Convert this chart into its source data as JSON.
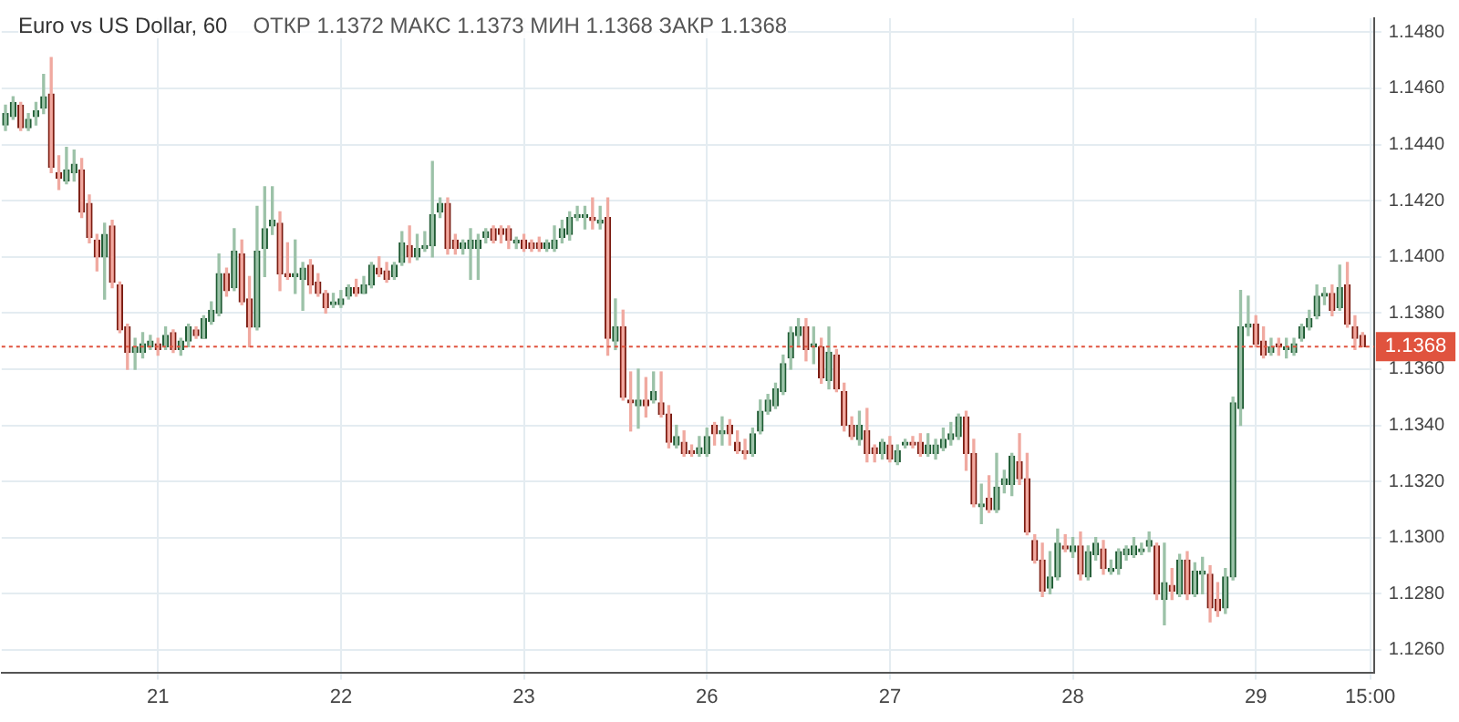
{
  "chart_data": {
    "type": "candlestick",
    "title": "Euro vs US Dollar, 60",
    "subtitle": "ОТКР 1.1372 МАКС 1.1373 МИН 1.1368 ЗАКР 1.1368",
    "categories": [
      null,
      null,
      null,
      null,
      null,
      null,
      null,
      null,
      null,
      null,
      null,
      null,
      null,
      null,
      null,
      null,
      null,
      null,
      null,
      null,
      "21",
      null,
      null,
      null,
      null,
      null,
      null,
      null,
      null,
      null,
      null,
      null,
      null,
      null,
      null,
      null,
      null,
      null,
      null,
      null,
      null,
      null,
      null,
      null,
      "22",
      null,
      null,
      null,
      null,
      null,
      null,
      null,
      null,
      null,
      null,
      null,
      null,
      null,
      null,
      null,
      null,
      null,
      null,
      null,
      null,
      null,
      null,
      null,
      "23",
      null,
      null,
      null,
      null,
      null,
      null,
      null,
      null,
      null,
      null,
      null,
      null,
      null,
      null,
      null,
      null,
      null,
      null,
      null,
      null,
      null,
      null,
      null,
      "26",
      null,
      null,
      null,
      null,
      null,
      null,
      null,
      null,
      null,
      null,
      null,
      null,
      null,
      null,
      null,
      null,
      null,
      null,
      null,
      null,
      null,
      null,
      null,
      "27",
      null,
      null,
      null,
      null,
      null,
      null,
      null,
      null,
      null,
      null,
      null,
      null,
      null,
      null,
      null,
      null,
      null,
      null,
      null,
      null,
      null,
      null,
      null,
      "28",
      null,
      null,
      null,
      null,
      null,
      null,
      null,
      null,
      null,
      null,
      null,
      null,
      null,
      null,
      null,
      null,
      null,
      null,
      null,
      null,
      null,
      null,
      null,
      "29",
      null,
      null,
      null,
      null,
      null,
      null,
      null,
      null,
      null,
      null,
      null,
      null,
      null,
      null,
      "15:00"
    ],
    "ohlc": [
      [
        1.1447,
        1.1454,
        1.1445,
        1.1451
      ],
      [
        1.145,
        1.1457,
        1.1449,
        1.1455
      ],
      [
        1.1454,
        1.1455,
        1.1445,
        1.1446
      ],
      [
        1.1446,
        1.1451,
        1.1445,
        1.1449
      ],
      [
        1.145,
        1.1455,
        1.1447,
        1.1452
      ],
      [
        1.1453,
        1.1465,
        1.1451,
        1.1457
      ],
      [
        1.1458,
        1.1471,
        1.143,
        1.1432
      ],
      [
        1.143,
        1.1436,
        1.1424,
        1.1428
      ],
      [
        1.1427,
        1.1439,
        1.1426,
        1.1431
      ],
      [
        1.143,
        1.1438,
        1.1427,
        1.1433
      ],
      [
        1.1431,
        1.1435,
        1.1414,
        1.1416
      ],
      [
        1.1419,
        1.1422,
        1.1405,
        1.1407
      ],
      [
        1.1406,
        1.1408,
        1.1395,
        1.14
      ],
      [
        1.14,
        1.1412,
        1.1385,
        1.1408
      ],
      [
        1.1411,
        1.1413,
        1.1389,
        1.1391
      ],
      [
        1.139,
        1.1391,
        1.1373,
        1.1374
      ],
      [
        1.1375,
        1.1376,
        1.136,
        1.1366
      ],
      [
        1.1366,
        1.1371,
        1.136,
        1.1368
      ],
      [
        1.1366,
        1.1373,
        1.1364,
        1.1369
      ],
      [
        1.1368,
        1.1372,
        1.1367,
        1.137
      ],
      [
        1.1369,
        1.1371,
        1.1365,
        1.1367
      ],
      [
        1.1368,
        1.1375,
        1.1367,
        1.1372
      ],
      [
        1.1373,
        1.1374,
        1.1366,
        1.1367
      ],
      [
        1.1367,
        1.1371,
        1.1365,
        1.137
      ],
      [
        1.137,
        1.1376,
        1.1368,
        1.1375
      ],
      [
        1.1374,
        1.1375,
        1.1371,
        1.1372
      ],
      [
        1.1371,
        1.1379,
        1.1371,
        1.1378
      ],
      [
        1.1377,
        1.1384,
        1.1376,
        1.1381
      ],
      [
        1.138,
        1.1401,
        1.1379,
        1.1394
      ],
      [
        1.1394,
        1.1396,
        1.1386,
        1.1388
      ],
      [
        1.1389,
        1.141,
        1.1388,
        1.1402
      ],
      [
        1.1401,
        1.1406,
        1.1383,
        1.1384
      ],
      [
        1.1385,
        1.1393,
        1.1368,
        1.1375
      ],
      [
        1.1375,
        1.1418,
        1.1374,
        1.1402
      ],
      [
        1.1403,
        1.1425,
        1.1393,
        1.141
      ],
      [
        1.1411,
        1.1425,
        1.1408,
        1.1413
      ],
      [
        1.1412,
        1.1416,
        1.1388,
        1.1394
      ],
      [
        1.1394,
        1.1405,
        1.1392,
        1.1393
      ],
      [
        1.1393,
        1.1406,
        1.1387,
        1.1394
      ],
      [
        1.1392,
        1.1398,
        1.1381,
        1.1396
      ],
      [
        1.1397,
        1.1399,
        1.1387,
        1.139
      ],
      [
        1.1391,
        1.1394,
        1.1386,
        1.1387
      ],
      [
        1.1387,
        1.1388,
        1.138,
        1.1382
      ],
      [
        1.1383,
        1.1387,
        1.1382,
        1.1384
      ],
      [
        1.1383,
        1.1388,
        1.1382,
        1.1385
      ],
      [
        1.1386,
        1.139,
        1.1385,
        1.1389
      ],
      [
        1.1389,
        1.1392,
        1.1386,
        1.1387
      ],
      [
        1.1387,
        1.1393,
        1.1387,
        1.139
      ],
      [
        1.139,
        1.1398,
        1.1389,
        1.1397
      ],
      [
        1.1396,
        1.14,
        1.1393,
        1.1394
      ],
      [
        1.1395,
        1.1398,
        1.1391,
        1.1392
      ],
      [
        1.1393,
        1.1398,
        1.1392,
        1.1397
      ],
      [
        1.1398,
        1.1409,
        1.1397,
        1.1405
      ],
      [
        1.1404,
        1.1411,
        1.1398,
        1.14
      ],
      [
        1.14,
        1.1408,
        1.1399,
        1.1403
      ],
      [
        1.1403,
        1.1409,
        1.1402,
        1.1404
      ],
      [
        1.1404,
        1.1434,
        1.14,
        1.1415
      ],
      [
        1.1416,
        1.1421,
        1.1414,
        1.1419
      ],
      [
        1.1419,
        1.1421,
        1.1401,
        1.1403
      ],
      [
        1.1406,
        1.1408,
        1.1401,
        1.1403
      ],
      [
        1.1403,
        1.1406,
        1.1401,
        1.1405
      ],
      [
        1.1403,
        1.141,
        1.1392,
        1.1406
      ],
      [
        1.1403,
        1.1408,
        1.1392,
        1.1406
      ],
      [
        1.1407,
        1.141,
        1.1405,
        1.1409
      ],
      [
        1.141,
        1.1411,
        1.1405,
        1.1406
      ],
      [
        1.141,
        1.1411,
        1.1405,
        1.1408
      ],
      [
        1.141,
        1.1411,
        1.1403,
        1.1406
      ],
      [
        1.1405,
        1.1407,
        1.1403,
        1.1406
      ],
      [
        1.1406,
        1.1408,
        1.1402,
        1.1403
      ],
      [
        1.1405,
        1.1406,
        1.1402,
        1.1403
      ],
      [
        1.1405,
        1.1407,
        1.1402,
        1.1403
      ],
      [
        1.1403,
        1.1406,
        1.1402,
        1.1405
      ],
      [
        1.1403,
        1.1411,
        1.1402,
        1.1406
      ],
      [
        1.1407,
        1.1413,
        1.1405,
        1.141
      ],
      [
        1.1408,
        1.1416,
        1.1406,
        1.1414
      ],
      [
        1.1414,
        1.1418,
        1.1413,
        1.1415
      ],
      [
        1.1414,
        1.1418,
        1.141,
        1.1415
      ],
      [
        1.1414,
        1.1421,
        1.141,
        1.1413
      ],
      [
        1.1412,
        1.1418,
        1.141,
        1.1413
      ],
      [
        1.1414,
        1.1421,
        1.1365,
        1.1371
      ],
      [
        1.137,
        1.1385,
        1.1367,
        1.1375
      ],
      [
        1.1375,
        1.1381,
        1.1349,
        1.135
      ],
      [
        1.1349,
        1.1359,
        1.1338,
        1.1348
      ],
      [
        1.1347,
        1.136,
        1.1339,
        1.1349
      ],
      [
        1.1349,
        1.1357,
        1.1343,
        1.1347
      ],
      [
        1.1349,
        1.1359,
        1.1348,
        1.1352
      ],
      [
        1.1348,
        1.1359,
        1.1343,
        1.1344
      ],
      [
        1.1344,
        1.1347,
        1.1332,
        1.1334
      ],
      [
        1.1333,
        1.134,
        1.1332,
        1.1336
      ],
      [
        1.1334,
        1.1338,
        1.1329,
        1.133
      ],
      [
        1.1331,
        1.1333,
        1.1329,
        1.133
      ],
      [
        1.133,
        1.1336,
        1.1329,
        1.1332
      ],
      [
        1.133,
        1.1339,
        1.1329,
        1.1336
      ],
      [
        1.134,
        1.1341,
        1.1333,
        1.1337
      ],
      [
        1.1337,
        1.1343,
        1.1333,
        1.1338
      ],
      [
        1.134,
        1.1342,
        1.1333,
        1.1337
      ],
      [
        1.1334,
        1.1338,
        1.133,
        1.1331
      ],
      [
        1.1331,
        1.1335,
        1.1328,
        1.133
      ],
      [
        1.133,
        1.1339,
        1.1329,
        1.1337
      ],
      [
        1.1338,
        1.1349,
        1.1337,
        1.1345
      ],
      [
        1.1345,
        1.1351,
        1.1344,
        1.1349
      ],
      [
        1.1347,
        1.1355,
        1.1346,
        1.1353
      ],
      [
        1.1352,
        1.1365,
        1.1351,
        1.1362
      ],
      [
        1.1364,
        1.1375,
        1.136,
        1.1373
      ],
      [
        1.1372,
        1.1378,
        1.1368,
        1.1375
      ],
      [
        1.1375,
        1.1378,
        1.1363,
        1.1367
      ],
      [
        1.1368,
        1.1375,
        1.1362,
        1.1369
      ],
      [
        1.1368,
        1.1371,
        1.1355,
        1.1357
      ],
      [
        1.1356,
        1.1375,
        1.1353,
        1.1366
      ],
      [
        1.1365,
        1.1367,
        1.1352,
        1.1353
      ],
      [
        1.1352,
        1.1355,
        1.1338,
        1.134
      ],
      [
        1.134,
        1.1343,
        1.1335,
        1.1336
      ],
      [
        1.1335,
        1.1345,
        1.1333,
        1.134
      ],
      [
        1.1338,
        1.1346,
        1.1327,
        1.133
      ],
      [
        1.1332,
        1.1333,
        1.1327,
        1.133
      ],
      [
        1.133,
        1.1335,
        1.1328,
        1.1334
      ],
      [
        1.1333,
        1.1336,
        1.1327,
        1.1328
      ],
      [
        1.1327,
        1.1333,
        1.1326,
        1.1331
      ],
      [
        1.1333,
        1.1335,
        1.1332,
        1.1334
      ],
      [
        1.1334,
        1.1336,
        1.1332,
        1.1333
      ],
      [
        1.1334,
        1.1337,
        1.1329,
        1.133
      ],
      [
        1.133,
        1.1337,
        1.1329,
        1.1333
      ],
      [
        1.133,
        1.1335,
        1.1328,
        1.1333
      ],
      [
        1.1332,
        1.1339,
        1.1331,
        1.1335
      ],
      [
        1.1335,
        1.1341,
        1.1333,
        1.1337
      ],
      [
        1.1336,
        1.1344,
        1.1335,
        1.1343
      ],
      [
        1.1343,
        1.1345,
        1.1324,
        1.133
      ],
      [
        1.133,
        1.1335,
        1.1311,
        1.1312
      ],
      [
        1.1311,
        1.1319,
        1.1305,
        1.1312
      ],
      [
        1.1314,
        1.1322,
        1.1309,
        1.131
      ],
      [
        1.131,
        1.133,
        1.1309,
        1.1318
      ],
      [
        1.1319,
        1.1324,
        1.1316,
        1.1321
      ],
      [
        1.1319,
        1.133,
        1.1315,
        1.1329
      ],
      [
        1.1327,
        1.1337,
        1.1319,
        1.1321
      ],
      [
        1.1321,
        1.133,
        1.1301,
        1.1302
      ],
      [
        1.1299,
        1.1301,
        1.1291,
        1.1292
      ],
      [
        1.1292,
        1.1298,
        1.1279,
        1.1281
      ],
      [
        1.1282,
        1.1295,
        1.128,
        1.1286
      ],
      [
        1.1286,
        1.1303,
        1.1285,
        1.1298
      ],
      [
        1.1297,
        1.1301,
        1.1295,
        1.1296
      ],
      [
        1.1295,
        1.13,
        1.1293,
        1.1297
      ],
      [
        1.1297,
        1.1302,
        1.1285,
        1.1287
      ],
      [
        1.1286,
        1.1297,
        1.1285,
        1.1295
      ],
      [
        1.1294,
        1.13,
        1.1292,
        1.1298
      ],
      [
        1.1296,
        1.1299,
        1.1287,
        1.1289
      ],
      [
        1.1288,
        1.1292,
        1.1287,
        1.1289
      ],
      [
        1.1289,
        1.1296,
        1.1287,
        1.1295
      ],
      [
        1.1294,
        1.1297,
        1.1292,
        1.1296
      ],
      [
        1.1294,
        1.13,
        1.1293,
        1.1297
      ],
      [
        1.1295,
        1.1298,
        1.1294,
        1.1296
      ],
      [
        1.1297,
        1.1302,
        1.1295,
        1.1299
      ],
      [
        1.1297,
        1.1298,
        1.1278,
        1.128
      ],
      [
        1.1278,
        1.1298,
        1.1269,
        1.1284
      ],
      [
        1.1283,
        1.1289,
        1.1278,
        1.1281
      ],
      [
        1.128,
        1.1294,
        1.1279,
        1.1292
      ],
      [
        1.1292,
        1.1295,
        1.1278,
        1.128
      ],
      [
        1.128,
        1.1291,
        1.1279,
        1.1288
      ],
      [
        1.1287,
        1.1293,
        1.128,
        1.1288
      ],
      [
        1.1287,
        1.129,
        1.127,
        1.1275
      ],
      [
        1.1278,
        1.1284,
        1.1272,
        1.1274
      ],
      [
        1.1275,
        1.1289,
        1.1273,
        1.1286
      ],
      [
        1.1286,
        1.135,
        1.1285,
        1.1348
      ],
      [
        1.1346,
        1.1388,
        1.134,
        1.1375
      ],
      [
        1.1375,
        1.1386,
        1.1372,
        1.1376
      ],
      [
        1.1376,
        1.1379,
        1.1368,
        1.1369
      ],
      [
        1.137,
        1.1375,
        1.1364,
        1.1365
      ],
      [
        1.1366,
        1.1371,
        1.1365,
        1.1368
      ],
      [
        1.1369,
        1.1371,
        1.1365,
        1.1368
      ],
      [
        1.1367,
        1.1371,
        1.1364,
        1.1368
      ],
      [
        1.1366,
        1.1371,
        1.1365,
        1.1369
      ],
      [
        1.1371,
        1.1376,
        1.137,
        1.1375
      ],
      [
        1.1375,
        1.1381,
        1.1374,
        1.1378
      ],
      [
        1.1379,
        1.139,
        1.1378,
        1.1386
      ],
      [
        1.1386,
        1.1389,
        1.1383,
        1.1387
      ],
      [
        1.1387,
        1.139,
        1.1379,
        1.1381
      ],
      [
        1.1382,
        1.1397,
        1.1381,
        1.1389
      ],
      [
        1.139,
        1.1398,
        1.1375,
        1.1376
      ],
      [
        1.1375,
        1.1379,
        1.1367,
        1.1371
      ],
      [
        1.1372,
        1.1373,
        1.1368,
        1.1368
      ],
      null
    ],
    "ylim": [
      1.1252,
      1.1485
    ],
    "yticks": [
      {
        "value": 1.126,
        "label": "1.1260"
      },
      {
        "value": 1.128,
        "label": "1.1280"
      },
      {
        "value": 1.13,
        "label": "1.1300"
      },
      {
        "value": 1.132,
        "label": "1.1320"
      },
      {
        "value": 1.134,
        "label": "1.1340"
      },
      {
        "value": 1.136,
        "label": "1.1360"
      },
      {
        "value": 1.138,
        "label": "1.1380"
      },
      {
        "value": 1.14,
        "label": "1.1400"
      },
      {
        "value": 1.142,
        "label": "1.1420"
      },
      {
        "value": 1.144,
        "label": "1.1440"
      },
      {
        "value": 1.146,
        "label": "1.1460"
      },
      {
        "value": 1.148,
        "label": "1.1480"
      }
    ],
    "ref_lines": [
      {
        "axis": "y",
        "value": 1.1368,
        "label": "1.1368",
        "color": "#e0533e",
        "line_style": "dotted"
      }
    ],
    "grid": true,
    "legend": false
  }
}
